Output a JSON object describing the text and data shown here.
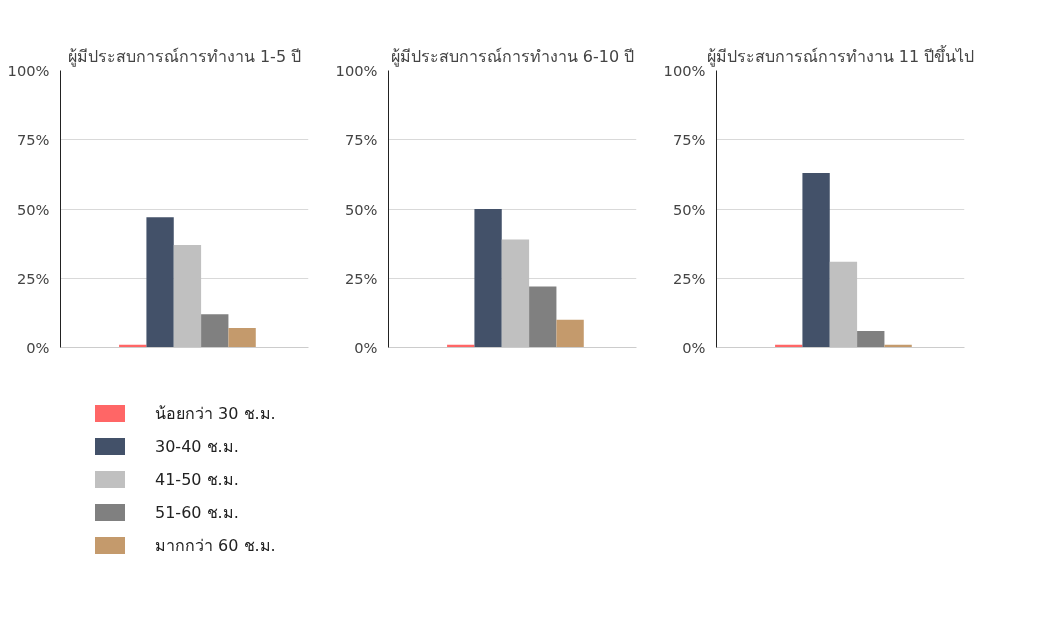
{
  "chart_data": [
    {
      "type": "bar",
      "title": "ผู้มีประสบการณ์การทำงาน 1-5 ปี",
      "categories": [
        null
      ],
      "ylim": [
        0,
        100
      ],
      "yticks": [
        {
          "value": 0,
          "label": "0%"
        },
        {
          "value": 25,
          "label": "25%"
        },
        {
          "value": 50,
          "label": "50%"
        },
        {
          "value": 75,
          "label": "75%"
        },
        {
          "value": 100,
          "label": "100%"
        }
      ],
      "grid": "y",
      "legend": "bottom",
      "tick_labels": "y",
      "series": [
        {
          "name": "น้อยกว่า 30 ช.ม.",
          "color": "#ff6666",
          "values": [
            1
          ]
        },
        {
          "name": "30-40 ช.ม.",
          "color": "#435169",
          "values": [
            47
          ]
        },
        {
          "name": "41-50 ช.ม.",
          "color": "#c0c0c0",
          "values": [
            37
          ]
        },
        {
          "name": "51-60 ช.ม.",
          "color": "#808080",
          "values": [
            12
          ]
        },
        {
          "name": "มากกว่า 60 ช.ม.",
          "color": "#c49a6c",
          "values": [
            7
          ]
        }
      ]
    },
    {
      "type": "bar",
      "title": "ผู้มีประสบการณ์การทำงาน 6-10 ปี",
      "categories": [
        null
      ],
      "ylim": [
        0,
        100
      ],
      "yticks": [
        {
          "value": 0,
          "label": "0%"
        },
        {
          "value": 25,
          "label": "25%"
        },
        {
          "value": 50,
          "label": "50%"
        },
        {
          "value": 75,
          "label": "75%"
        },
        {
          "value": 100,
          "label": "100%"
        }
      ],
      "grid": "y",
      "tick_labels": "y",
      "series": [
        {
          "color": "#ff6666",
          "values": [
            1
          ]
        },
        {
          "color": "#435169",
          "values": [
            50
          ]
        },
        {
          "color": "#c0c0c0",
          "values": [
            39
          ]
        },
        {
          "color": "#808080",
          "values": [
            22
          ]
        },
        {
          "color": "#c49a6c",
          "values": [
            10
          ]
        }
      ]
    },
    {
      "type": "bar",
      "title": "ผู้มีประสบการณ์การทำงาน 11 ปีขึ้นไป",
      "categories": [
        null
      ],
      "ylim": [
        0,
        100
      ],
      "yticks": [
        {
          "value": 0,
          "label": "0%"
        },
        {
          "value": 25,
          "label": "25%"
        },
        {
          "value": 50,
          "label": "50%"
        },
        {
          "value": 75,
          "label": "75%"
        },
        {
          "value": 100,
          "label": "100%"
        }
      ],
      "grid": "y",
      "tick_labels": "y",
      "series": [
        {
          "color": "#ff6666",
          "values": [
            1
          ]
        },
        {
          "color": "#435169",
          "values": [
            63
          ]
        },
        {
          "color": "#c0c0c0",
          "values": [
            31
          ]
        },
        {
          "color": "#808080",
          "values": [
            6
          ]
        },
        {
          "color": "#c49a6c",
          "values": [
            1
          ]
        }
      ]
    }
  ]
}
